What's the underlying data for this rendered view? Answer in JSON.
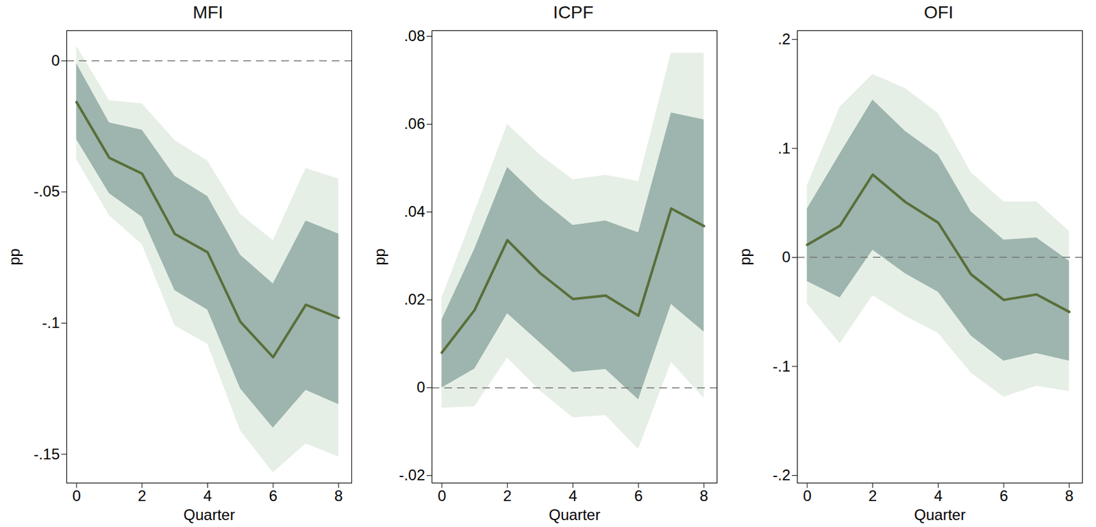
{
  "chart_data": [
    {
      "type": "line",
      "title": "MFI",
      "xlabel": "Quarter",
      "ylabel": "pp",
      "x": [
        0,
        1,
        2,
        3,
        4,
        5,
        6,
        7,
        8
      ],
      "xlim": [
        -0.3,
        8.4
      ],
      "xticks": [
        0,
        2,
        4,
        6,
        8
      ],
      "ylim": [
        -0.161,
        0.0115
      ],
      "yticks": [
        {
          "value": -0.15,
          "label": "-.15"
        },
        {
          "value": -0.1,
          "label": "-.1"
        },
        {
          "value": -0.05,
          "label": "-.05"
        },
        0
      ],
      "series": [
        {
          "color": "#5a6e3a",
          "values": [
            -0.0157,
            -0.037,
            -0.043,
            -0.066,
            -0.073,
            -0.0995,
            -0.113,
            -0.093,
            -0.098
          ]
        }
      ],
      "inner_band": {
        "color": "#9db5ae",
        "lower": [
          -0.03,
          -0.0506,
          -0.0596,
          -0.0876,
          -0.095,
          -0.125,
          -0.14,
          -0.1256,
          -0.131
        ],
        "upper": [
          -0.001,
          -0.0236,
          -0.0264,
          -0.044,
          -0.0517,
          -0.074,
          -0.085,
          -0.061,
          -0.066
        ]
      },
      "outer_band": {
        "color": "#e6efe6",
        "lower": [
          -0.0376,
          -0.059,
          -0.07,
          -0.101,
          -0.108,
          -0.141,
          -0.157,
          -0.146,
          -0.151
        ],
        "upper": [
          0.0056,
          -0.0152,
          -0.0163,
          -0.0303,
          -0.0382,
          -0.0584,
          -0.0685,
          -0.041,
          -0.045
        ]
      },
      "hline": {
        "value": 0,
        "color": "#777777",
        "line_style": "dashed"
      }
    },
    {
      "type": "line",
      "title": "ICPF",
      "xlabel": "Quarter",
      "ylabel": "pp",
      "x": [
        0,
        1,
        2,
        3,
        4,
        5,
        6,
        7,
        8
      ],
      "xlim": [
        -0.3,
        8.4
      ],
      "xticks": [
        0,
        2,
        4,
        6,
        8
      ],
      "ylim": [
        -0.0217,
        0.0813
      ],
      "yticks": [
        {
          "value": -0.02,
          "label": "-.02"
        },
        0,
        {
          "value": 0.02,
          "label": ".02"
        },
        {
          "value": 0.04,
          "label": ".04"
        },
        {
          "value": 0.06,
          "label": ".06"
        },
        {
          "value": 0.08,
          "label": ".08"
        }
      ],
      "series": [
        {
          "color": "#5a6e3a",
          "values": [
            0.008,
            0.0177,
            0.0336,
            0.0261,
            0.0202,
            0.021,
            0.0164,
            0.0408,
            0.0368
          ]
        }
      ],
      "inner_band": {
        "color": "#9db5ae",
        "lower": [
          0.0,
          0.0043,
          0.0169,
          0.0102,
          0.0035,
          0.0042,
          -0.0027,
          0.019,
          0.0127
        ],
        "upper": [
          0.0155,
          0.0316,
          0.0502,
          0.043,
          0.037,
          0.038,
          0.0353,
          0.0626,
          0.061
        ]
      },
      "outer_band": {
        "color": "#e6efe6",
        "lower": [
          -0.0046,
          -0.0043,
          0.0068,
          -0.0007,
          -0.0068,
          -0.0063,
          -0.014,
          0.0058,
          -0.0024
        ],
        "upper": [
          0.0205,
          0.04,
          0.06,
          0.053,
          0.0474,
          0.0484,
          0.047,
          0.0762,
          0.0762
        ]
      },
      "hline": {
        "value": 0,
        "color": "#777777",
        "line_style": "dashed"
      }
    },
    {
      "type": "line",
      "title": "OFI",
      "xlabel": "Quarter",
      "ylabel": "pp",
      "x": [
        0,
        1,
        2,
        3,
        4,
        5,
        6,
        7,
        8
      ],
      "xlim": [
        -0.3,
        8.4
      ],
      "xticks": [
        0,
        2,
        4,
        6,
        8
      ],
      "ylim": [
        -0.207,
        0.208
      ],
      "yticks": [
        {
          "value": -0.2,
          "label": "-.2"
        },
        {
          "value": -0.1,
          "label": "-.1"
        },
        0,
        {
          "value": 0.1,
          "label": ".1"
        },
        {
          "value": 0.2,
          "label": ".2"
        }
      ],
      "series": [
        {
          "color": "#5a6e3a",
          "values": [
            0.0115,
            0.029,
            0.076,
            0.0507,
            0.0318,
            -0.0155,
            -0.039,
            -0.034,
            -0.05
          ]
        }
      ],
      "inner_band": {
        "color": "#9db5ae",
        "lower": [
          -0.022,
          -0.037,
          0.0068,
          -0.015,
          -0.0318,
          -0.072,
          -0.095,
          -0.088,
          -0.095
        ],
        "upper": [
          0.0446,
          0.095,
          0.1446,
          0.1155,
          0.094,
          0.042,
          0.016,
          0.018,
          -0.0034
        ]
      },
      "outer_band": {
        "color": "#e6efe6",
        "lower": [
          -0.0426,
          -0.079,
          -0.035,
          -0.054,
          -0.0696,
          -0.106,
          -0.128,
          -0.118,
          -0.123
        ],
        "upper": [
          0.066,
          0.138,
          0.168,
          0.155,
          0.132,
          0.078,
          0.051,
          0.051,
          0.024
        ]
      },
      "hline": {
        "value": 0,
        "color": "#777777",
        "line_style": "dashed"
      }
    }
  ]
}
